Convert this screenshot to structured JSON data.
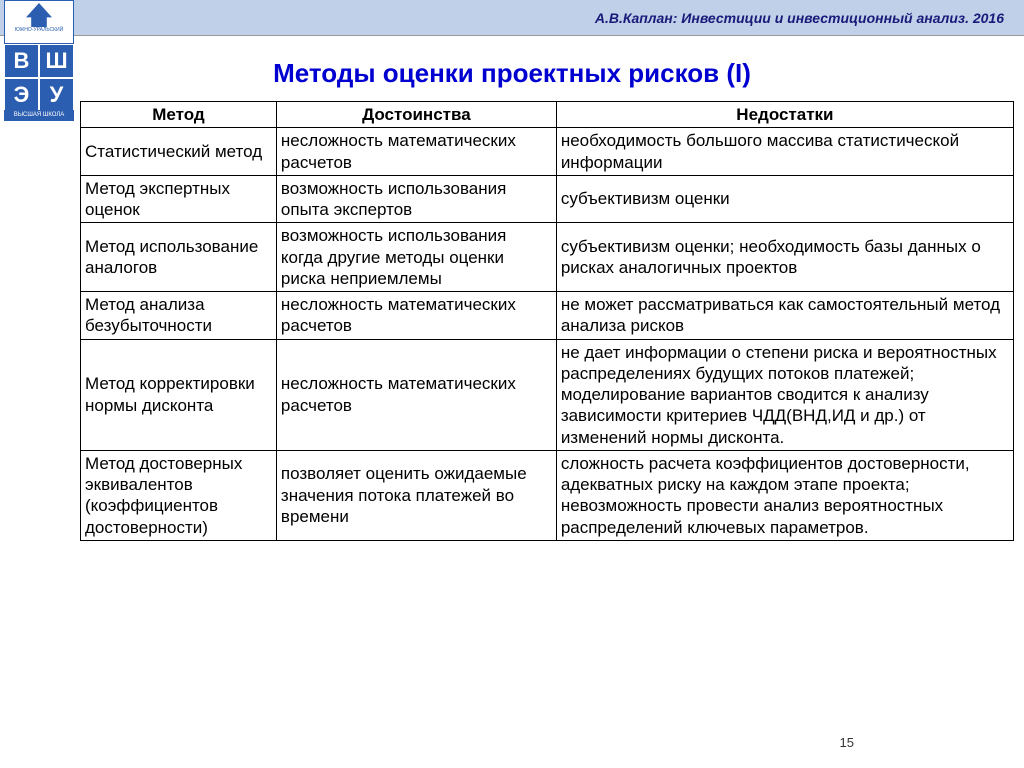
{
  "header": {
    "citation": "А.В.Каплан: Инвестиции и инвестиционный анализ. 2016"
  },
  "logo": {
    "top_label": "ЮЖНО-УРАЛЬСКИЙ",
    "letters": [
      "В",
      "Ш",
      "Э",
      "У"
    ],
    "bottom_label": "ВЫСШАЯ ШКОЛА"
  },
  "title": "Методы оценки проектных рисков (I)",
  "table": {
    "columns": [
      "Метод",
      "Достоинства",
      "Недостатки"
    ],
    "col_widths_pct": [
      21,
      30,
      49
    ],
    "font_size_pt": 13,
    "border_color": "#000000",
    "header_bg": "#ffffff",
    "rows": [
      {
        "method": "Статистический метод",
        "pros": "несложность математических расчетов",
        "cons": "необходимость большого массива статистической информации"
      },
      {
        "method": "Метод экспертных оценок",
        "pros": "возможность использования опыта экспертов",
        "cons": "субъективизм оценки"
      },
      {
        "method": "Метод использование аналогов",
        "pros": "возможность использования когда другие методы оценки риска неприемлемы",
        "cons": "субъективизм оценки; необходимость базы данных о рисках аналогичных проектов"
      },
      {
        "method": "Метод анализа безубыточности",
        "pros": "несложность математических расчетов",
        "cons": "не может рассматриваться как самостоятельный метод анализа рисков"
      },
      {
        "method": "Метод корректировки нормы дисконта",
        "pros": "несложность математических расчетов",
        "cons": "не дает информации о степени риска и вероятностных распределениях будущих потоков платежей; моделирование вариантов сводится к анализу зависимости критериев ЧДД(ВНД,ИД и др.) от изменений нормы дисконта."
      },
      {
        "method": "Метод достоверных эквивалентов (коэффициентов достоверности)",
        "pros": "позволяет оценить ожидаемые значения потока платежей во времени",
        "cons": "сложность расчета коэффициентов достоверности, адекватных риску на каждом этапе проекта; невозможность провести анализ вероятностных распределений ключевых параметров."
      }
    ]
  },
  "page_number": "15",
  "colors": {
    "title": "#0000d0",
    "header_bar": "#c0d0e8",
    "header_text": "#1a1a7a",
    "logo_blue": "#2b5db0"
  }
}
